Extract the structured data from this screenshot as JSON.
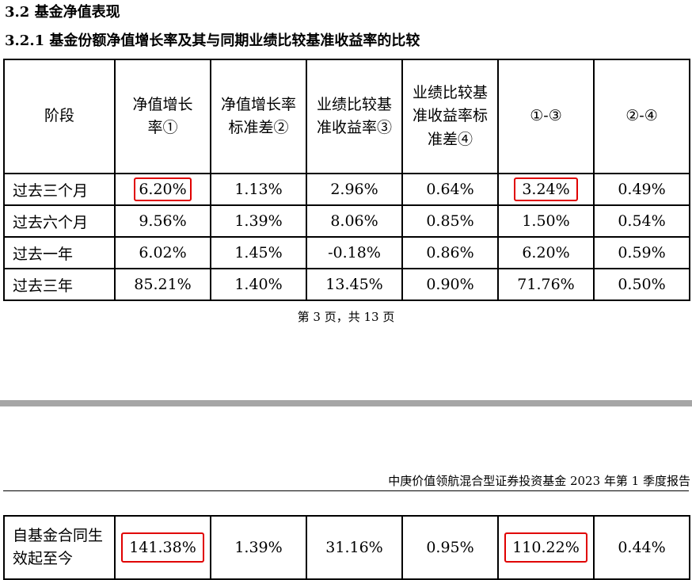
{
  "section_title": "3.2 基金净值表现",
  "subsection_title": "3.2.1 基金份额净值增长率及其与同期业绩比较基准收益率的比较",
  "table": {
    "headers": [
      "阶段",
      "净值增长率①",
      "净值增长率标准差②",
      "业绩比较基准收益率③",
      "业绩比较基准收益率标准差④",
      "①-③",
      "②-④"
    ],
    "rows": [
      [
        "过去三个月",
        "6.20%",
        "1.13%",
        "2.96%",
        "0.64%",
        "3.24%",
        "0.49%"
      ],
      [
        "过去六个月",
        "9.56%",
        "1.39%",
        "8.06%",
        "0.85%",
        "1.50%",
        "0.54%"
      ],
      [
        "过去一年",
        "6.02%",
        "1.45%",
        "-0.18%",
        "0.86%",
        "6.20%",
        "0.59%"
      ],
      [
        "过去三年",
        "85.21%",
        "1.40%",
        "13.45%",
        "0.90%",
        "71.76%",
        "0.50%"
      ]
    ]
  },
  "page_footer": "第 3 页，共 13 页",
  "running_header": "中庚价值领航混合型证券投资基金 2023 年第 1 季度报告",
  "table_continued": {
    "rows": [
      [
        "自基金合同生效起至今",
        "141.38%",
        "1.39%",
        "31.16%",
        "0.95%",
        "110.22%",
        "0.44%"
      ]
    ]
  },
  "highlight_color": "#e00000"
}
